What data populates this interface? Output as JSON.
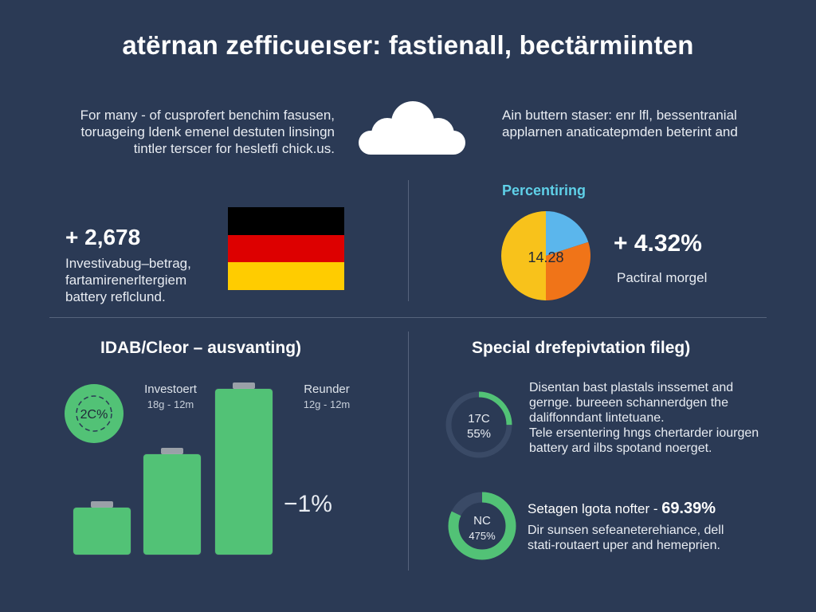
{
  "title": "atërnan zefficueıser: fastienall, bectärmiinten",
  "intro_left": [
    "For many - of cusprofert benchim fasusen,",
    "toruageing ldenk emenel destuten linsingn",
    "tintler terscer for hesletfi chick.us."
  ],
  "intro_right": [
    "Ain buttern staser: enr lfl, bessentranial",
    "applarnen anaticatepmden beterint and"
  ],
  "stat_left": {
    "value": "+ 2,678",
    "lines": [
      "Investivabug–betrag,",
      "fartamirenerltergiem",
      "battery reflclund."
    ]
  },
  "flag": {
    "colors": [
      "#000000",
      "#dd0000",
      "#ffcc00"
    ]
  },
  "pie": {
    "label": "Percentiring",
    "center_value": "14.28",
    "stat_value": "+ 4.32%",
    "stat_caption": "Pactiral morgel",
    "slices": [
      {
        "value": 0.2,
        "color": "#5bb6ec"
      },
      {
        "value": 0.3,
        "color": "#f07418"
      },
      {
        "value": 0.5,
        "color": "#f8c21b"
      }
    ]
  },
  "bars_section": {
    "title": "IDAB/Cleor – ausvanting)",
    "badge": "2C%",
    "col1_label": "Investoert",
    "col1_sub": "18g - 12m",
    "col2_label": "Reunder",
    "col2_sub": "12g - 12m",
    "delta": "−1%",
    "bar_levels": [
      0.31,
      0.62,
      1.0
    ]
  },
  "right_section": {
    "title": "Special drefepivtation fileg)",
    "ring1": {
      "top": "17C",
      "bottom": "55%",
      "fraction": 0.25
    },
    "ring1_text": [
      "Disentan bast plastals inssemet and",
      "gernge. bureeen schannerdgen the",
      "daliffonndant lintetuane.",
      "Tele ersentering hngs chertarder iourgen",
      "battery ard ilbs spotand noerget."
    ],
    "ring2": {
      "top": "NC",
      "bottom": "475%",
      "fraction": 0.82
    },
    "ring2_head": "Setagen lgota nofter -",
    "ring2_value": "69.39%",
    "ring2_text": [
      "Dir sunsen sefeaneterehiance, dell",
      "stati-routaert uper and hemeprien."
    ],
    "accent": "#52c276"
  }
}
